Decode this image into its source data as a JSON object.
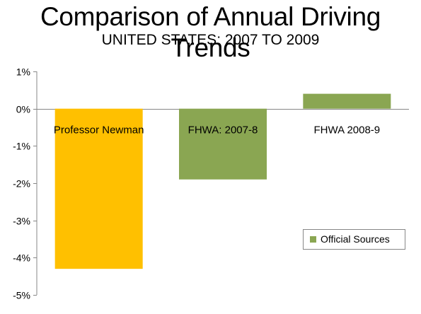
{
  "header": {
    "title": "Comparison of Annual Driving Trends",
    "subtitle": "UNITED STATES: 2007 TO 2009"
  },
  "colors": {
    "gold": "#FFC000",
    "green": "#8AA652",
    "axis": "#878787",
    "text": "#000000"
  },
  "chart_data": {
    "type": "bar",
    "title": "Comparison of Annual Driving Trends",
    "subtitle": "UNITED STATES: 2007 TO 2009",
    "xlabel": "",
    "ylabel": "",
    "categories": [
      "Professor Newman",
      "FHWA: 2007-8",
      "FHWA 2008-9"
    ],
    "values": [
      -4.3,
      -1.9,
      0.4
    ],
    "value_unit": "%",
    "bar_colors": [
      "#FFC000",
      "#8AA652",
      "#8AA652"
    ],
    "ylim": [
      -5,
      1
    ],
    "yticks": [
      1,
      0,
      -1,
      -2,
      -3,
      -4,
      -5
    ],
    "ytick_labels": [
      "1%",
      "0%",
      "-1%",
      "-2%",
      "-3%",
      "-4%",
      "-5%"
    ],
    "grid": false,
    "legend": {
      "placement": "bottom-right",
      "entries": [
        {
          "label": "Official Sources",
          "color": "#8AA652"
        }
      ]
    }
  }
}
